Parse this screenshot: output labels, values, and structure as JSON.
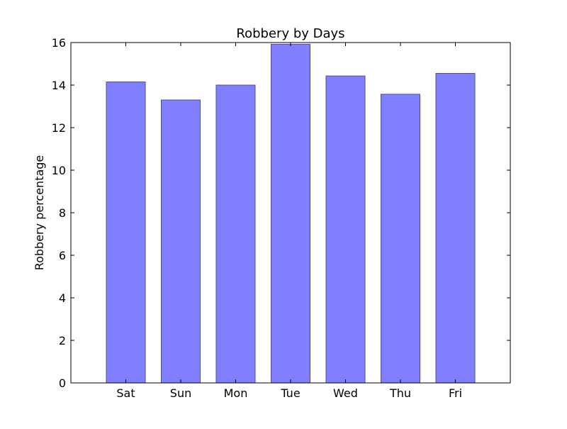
{
  "chart_data": {
    "type": "bar",
    "title": "Robbery by Days",
    "xlabel": "",
    "ylabel": "Robbery percentage",
    "categories": [
      "Sat",
      "Sun",
      "Mon",
      "Tue",
      "Wed",
      "Thu",
      "Fri"
    ],
    "values": [
      14.15,
      13.3,
      14.0,
      15.92,
      14.43,
      13.57,
      14.55
    ],
    "ylim": [
      0,
      16
    ],
    "yticks": [
      0,
      2,
      4,
      6,
      8,
      10,
      12,
      14,
      16
    ],
    "grid": false,
    "legend": "none",
    "bar_color": "#8080ff",
    "bar_edge_color": "#4d4d99"
  }
}
